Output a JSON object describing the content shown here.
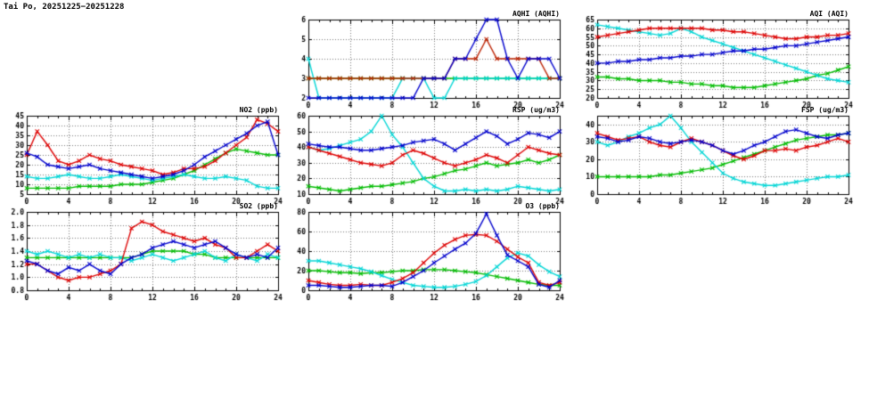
{
  "page_title": "Tai Po, 20251225−20251228",
  "palette": {
    "red": "#dd0000",
    "blue": "#0000cc",
    "green": "#00bb00",
    "cyan": "#00d5d5",
    "grid": "#777777",
    "axis": "#000000"
  },
  "chart_data": [
    {
      "id": "aqhi",
      "type": "line",
      "title": "AQHI (AQHI)",
      "xlim": [
        0,
        24
      ],
      "x_ticks": [
        0,
        4,
        8,
        12,
        16,
        20,
        24
      ],
      "ylim": [
        2,
        6
      ],
      "y_ticks": [
        2,
        3,
        4,
        5,
        6
      ],
      "y_decimals": 0,
      "series": [
        {
          "name": "series-green",
          "color": "#00bb00",
          "values": [
            3,
            3,
            3,
            3,
            3,
            3,
            3,
            3,
            3,
            3,
            3,
            3,
            3,
            3,
            3,
            3,
            3,
            3,
            3,
            3,
            3,
            3,
            3,
            3,
            3
          ]
        },
        {
          "name": "series-cyan",
          "color": "#00d5d5",
          "values": [
            4,
            2,
            2,
            2,
            2,
            2,
            2,
            2,
            2,
            3,
            3,
            3,
            2,
            2,
            3,
            3,
            3,
            3,
            3,
            3,
            3,
            3,
            3,
            3,
            3
          ]
        },
        {
          "name": "series-red",
          "color": "#bb2200",
          "values": [
            3,
            3,
            3,
            3,
            3,
            3,
            3,
            3,
            3,
            3,
            3,
            3,
            3,
            3,
            4,
            4,
            4,
            5,
            4,
            4,
            4,
            4,
            4,
            3,
            3
          ]
        },
        {
          "name": "series-blue",
          "color": "#0000cc",
          "values": [
            2,
            2,
            2,
            2,
            2,
            2,
            2,
            2,
            2,
            2,
            2,
            3,
            3,
            3,
            4,
            4,
            5,
            6,
            6,
            4,
            3,
            4,
            4,
            4,
            3
          ]
        }
      ]
    },
    {
      "id": "aqi",
      "type": "line",
      "title": "AQI (AQI)",
      "xlim": [
        0,
        24
      ],
      "x_ticks": [
        0,
        4,
        8,
        12,
        16,
        20,
        24
      ],
      "ylim": [
        20,
        65
      ],
      "y_ticks": [
        20,
        25,
        30,
        35,
        40,
        45,
        50,
        55,
        60,
        65
      ],
      "y_decimals": 0,
      "series": [
        {
          "name": "series-green",
          "color": "#00bb00",
          "values": [
            32,
            32,
            31,
            31,
            30,
            30,
            30,
            29,
            29,
            28,
            28,
            27,
            27,
            26,
            26,
            26,
            27,
            28,
            29,
            30,
            31,
            33,
            34,
            36,
            38
          ]
        },
        {
          "name": "series-cyan",
          "color": "#00d5d5",
          "values": [
            62,
            61,
            60,
            59,
            58,
            57,
            56,
            57,
            60,
            58,
            55,
            53,
            51,
            49,
            47,
            45,
            43,
            41,
            39,
            37,
            35,
            33,
            31,
            30,
            29
          ]
        },
        {
          "name": "series-red",
          "color": "#dd0000",
          "values": [
            55,
            56,
            57,
            58,
            59,
            60,
            60,
            60,
            60,
            60,
            60,
            59,
            59,
            58,
            58,
            57,
            56,
            55,
            54,
            54,
            55,
            55,
            56,
            56,
            57
          ]
        },
        {
          "name": "series-blue",
          "color": "#0000cc",
          "values": [
            40,
            40,
            41,
            41,
            42,
            42,
            43,
            43,
            44,
            44,
            45,
            45,
            46,
            47,
            47,
            48,
            48,
            49,
            50,
            50,
            51,
            52,
            53,
            54,
            55
          ]
        }
      ]
    },
    {
      "id": "no2",
      "type": "line",
      "title": "NO2 (ppb)",
      "xlim": [
        0,
        24
      ],
      "x_ticks": [
        0,
        4,
        8,
        12,
        16,
        20,
        24
      ],
      "ylim": [
        5,
        45
      ],
      "y_ticks": [
        5,
        10,
        15,
        20,
        25,
        30,
        35,
        40,
        45
      ],
      "y_decimals": 0,
      "series": [
        {
          "name": "series-green",
          "color": "#00bb00",
          "values": [
            8,
            8,
            8,
            8,
            8,
            9,
            9,
            9,
            9,
            10,
            10,
            10,
            11,
            12,
            13,
            15,
            17,
            20,
            23,
            26,
            28,
            27,
            26,
            25,
            25
          ]
        },
        {
          "name": "series-cyan",
          "color": "#00d5d5",
          "values": [
            14,
            13,
            13,
            14,
            15,
            14,
            13,
            13,
            14,
            15,
            14,
            13,
            12,
            13,
            14,
            15,
            14,
            13,
            13,
            14,
            13,
            12,
            9,
            8,
            8
          ]
        },
        {
          "name": "series-red",
          "color": "#dd0000",
          "values": [
            25,
            37,
            30,
            22,
            20,
            22,
            25,
            23,
            22,
            20,
            19,
            18,
            17,
            15,
            16,
            18,
            18,
            19,
            22,
            26,
            30,
            34,
            43,
            41,
            37
          ]
        },
        {
          "name": "series-blue",
          "color": "#0000cc",
          "values": [
            26,
            24,
            20,
            19,
            18,
            19,
            20,
            18,
            17,
            16,
            15,
            14,
            13,
            14,
            15,
            17,
            20,
            24,
            27,
            30,
            33,
            36,
            40,
            42,
            25
          ]
        }
      ]
    },
    {
      "id": "rsp",
      "type": "line",
      "title": "RSP (ug/m3)",
      "xlim": [
        0,
        24
      ],
      "x_ticks": [
        0,
        4,
        8,
        12,
        16,
        20,
        24
      ],
      "ylim": [
        10,
        60
      ],
      "y_ticks": [
        10,
        20,
        30,
        40,
        50,
        60
      ],
      "y_decimals": 0,
      "series": [
        {
          "name": "series-green",
          "color": "#00bb00",
          "values": [
            15,
            14,
            13,
            12,
            13,
            14,
            15,
            15,
            16,
            17,
            18,
            20,
            21,
            23,
            25,
            26,
            28,
            30,
            28,
            29,
            30,
            32,
            30,
            32,
            35
          ]
        },
        {
          "name": "series-cyan",
          "color": "#00d5d5",
          "values": [
            40,
            38,
            39,
            41,
            43,
            45,
            50,
            60,
            48,
            40,
            30,
            20,
            15,
            12,
            12,
            13,
            12,
            13,
            12,
            13,
            15,
            14,
            13,
            12,
            13
          ]
        },
        {
          "name": "series-red",
          "color": "#dd0000",
          "values": [
            40,
            38,
            36,
            34,
            32,
            30,
            29,
            28,
            30,
            35,
            38,
            36,
            33,
            30,
            28,
            30,
            32,
            35,
            33,
            30,
            35,
            40,
            38,
            36,
            35
          ]
        },
        {
          "name": "series-blue",
          "color": "#0000cc",
          "values": [
            42,
            41,
            40,
            40,
            39,
            38,
            38,
            39,
            40,
            41,
            43,
            44,
            45,
            42,
            38,
            42,
            46,
            50,
            47,
            42,
            45,
            49,
            48,
            46,
            50
          ]
        }
      ]
    },
    {
      "id": "fsp",
      "type": "line",
      "title": "FSP (ug/m3)",
      "xlim": [
        0,
        24
      ],
      "x_ticks": [
        0,
        4,
        8,
        12,
        16,
        20,
        24
      ],
      "ylim": [
        0,
        45
      ],
      "y_ticks": [
        0,
        10,
        20,
        30,
        40
      ],
      "y_decimals": 0,
      "series": [
        {
          "name": "series-green",
          "color": "#00bb00",
          "values": [
            10,
            10,
            10,
            10,
            10,
            10,
            11,
            11,
            12,
            13,
            14,
            15,
            17,
            19,
            21,
            23,
            25,
            27,
            29,
            31,
            32,
            33,
            34,
            34,
            35
          ]
        },
        {
          "name": "series-cyan",
          "color": "#00d5d5",
          "values": [
            30,
            28,
            30,
            33,
            35,
            38,
            40,
            45,
            38,
            30,
            24,
            18,
            12,
            9,
            7,
            6,
            5,
            5,
            6,
            7,
            8,
            9,
            10,
            10,
            11
          ]
        },
        {
          "name": "series-red",
          "color": "#dd0000",
          "values": [
            35,
            33,
            31,
            32,
            33,
            30,
            28,
            27,
            30,
            32,
            30,
            28,
            25,
            22,
            20,
            22,
            25,
            25,
            26,
            25,
            27,
            28,
            30,
            32,
            30
          ]
        },
        {
          "name": "series-blue",
          "color": "#0000cc",
          "values": [
            33,
            32,
            30,
            31,
            33,
            32,
            30,
            29,
            30,
            31,
            30,
            28,
            25,
            23,
            25,
            28,
            30,
            33,
            36,
            37,
            35,
            33,
            32,
            34,
            35
          ]
        }
      ]
    },
    {
      "id": "so2",
      "type": "line",
      "title": "SO2 (ppb)",
      "xlim": [
        0,
        24
      ],
      "x_ticks": [
        0,
        4,
        8,
        12,
        16,
        20,
        24
      ],
      "ylim": [
        0.8,
        2.0
      ],
      "y_ticks": [
        0.8,
        1.0,
        1.2,
        1.4,
        1.6,
        1.8,
        2.0
      ],
      "y_decimals": 1,
      "series": [
        {
          "name": "series-green",
          "color": "#00bb00",
          "values": [
            1.3,
            1.3,
            1.3,
            1.3,
            1.3,
            1.3,
            1.3,
            1.3,
            1.3,
            1.3,
            1.3,
            1.35,
            1.4,
            1.4,
            1.4,
            1.4,
            1.35,
            1.35,
            1.3,
            1.3,
            1.3,
            1.3,
            1.3,
            1.3,
            1.3
          ]
        },
        {
          "name": "series-cyan",
          "color": "#00d5d5",
          "values": [
            1.4,
            1.35,
            1.4,
            1.35,
            1.3,
            1.35,
            1.3,
            1.35,
            1.3,
            1.3,
            1.25,
            1.3,
            1.35,
            1.3,
            1.25,
            1.3,
            1.35,
            1.4,
            1.3,
            1.25,
            1.35,
            1.3,
            1.25,
            1.35,
            1.3
          ]
        },
        {
          "name": "series-red",
          "color": "#dd0000",
          "values": [
            1.2,
            1.2,
            1.1,
            1.0,
            0.95,
            1.0,
            1.0,
            1.05,
            1.1,
            1.2,
            1.75,
            1.85,
            1.8,
            1.7,
            1.65,
            1.6,
            1.55,
            1.6,
            1.5,
            1.45,
            1.3,
            1.3,
            1.4,
            1.5,
            1.4
          ]
        },
        {
          "name": "series-blue",
          "color": "#0000cc",
          "values": [
            1.25,
            1.2,
            1.1,
            1.05,
            1.15,
            1.1,
            1.2,
            1.1,
            1.05,
            1.2,
            1.3,
            1.35,
            1.45,
            1.5,
            1.55,
            1.5,
            1.45,
            1.5,
            1.55,
            1.45,
            1.35,
            1.3,
            1.35,
            1.3,
            1.45
          ]
        }
      ]
    },
    {
      "id": "o3",
      "type": "line",
      "title": "O3 (ppb)",
      "xlim": [
        0,
        24
      ],
      "x_ticks": [
        0,
        4,
        8,
        12,
        16,
        20,
        24
      ],
      "ylim": [
        0,
        80
      ],
      "y_ticks": [
        0,
        20,
        40,
        60,
        80
      ],
      "y_decimals": 0,
      "series": [
        {
          "name": "series-green",
          "color": "#00bb00",
          "values": [
            20,
            20,
            19,
            18,
            18,
            17,
            18,
            18,
            19,
            20,
            20,
            21,
            21,
            21,
            20,
            19,
            18,
            16,
            14,
            12,
            10,
            8,
            6,
            5,
            5
          ]
        },
        {
          "name": "series-cyan",
          "color": "#00d5d5",
          "values": [
            30,
            30,
            28,
            26,
            24,
            22,
            19,
            15,
            11,
            8,
            5,
            4,
            3,
            3,
            4,
            6,
            9,
            15,
            24,
            33,
            38,
            35,
            26,
            19,
            14
          ]
        },
        {
          "name": "series-red",
          "color": "#dd0000",
          "values": [
            10,
            8,
            6,
            5,
            5,
            6,
            5,
            5,
            8,
            12,
            18,
            28,
            38,
            46,
            52,
            56,
            57,
            56,
            50,
            42,
            34,
            28,
            8,
            5,
            8
          ]
        },
        {
          "name": "series-blue",
          "color": "#0000cc",
          "values": [
            5,
            5,
            4,
            3,
            3,
            4,
            5,
            5,
            4,
            8,
            14,
            20,
            28,
            35,
            42,
            48,
            58,
            78,
            56,
            36,
            30,
            24,
            6,
            3,
            10
          ]
        }
      ]
    }
  ]
}
